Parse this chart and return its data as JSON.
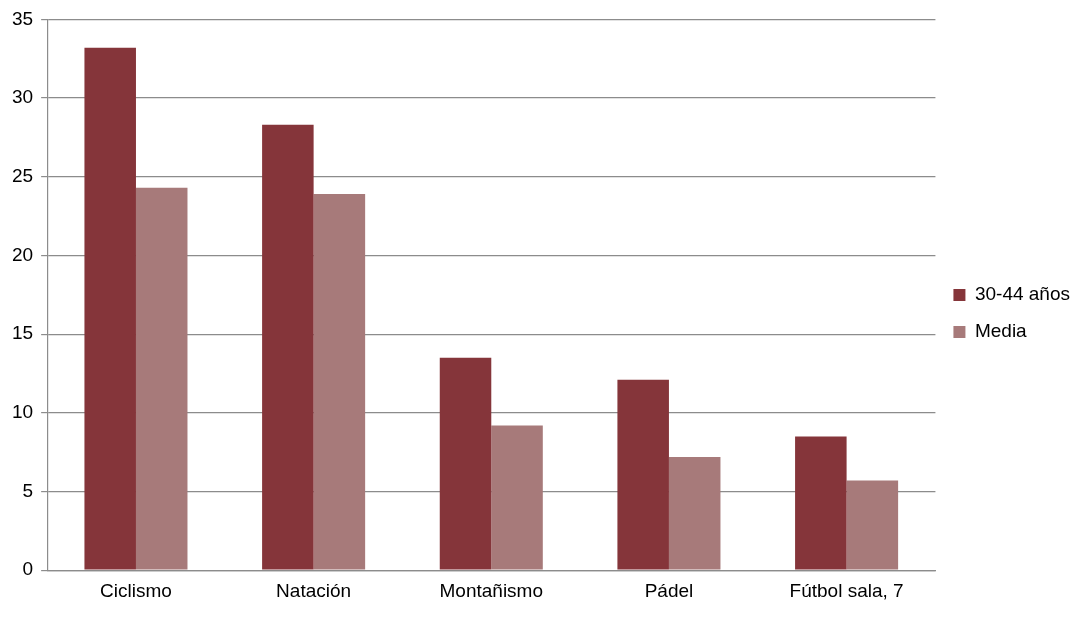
{
  "chart_data": {
    "type": "bar",
    "categories": [
      "Ciclismo",
      "Natación",
      "Montañismo",
      "Pádel",
      "Fútbol sala, 7"
    ],
    "series": [
      {
        "name": "30-44 años",
        "color": "#85353a",
        "values": [
          33.2,
          28.3,
          13.5,
          12.1,
          8.5
        ]
      },
      {
        "name": "Media",
        "color": "#a77a7a",
        "values": [
          24.3,
          23.9,
          9.2,
          7.2,
          5.7
        ]
      }
    ],
    "ylim": [
      0,
      35
    ],
    "yticks": [
      0,
      5,
      10,
      15,
      20,
      25,
      30,
      35
    ],
    "grid": "y",
    "legend": "right"
  }
}
